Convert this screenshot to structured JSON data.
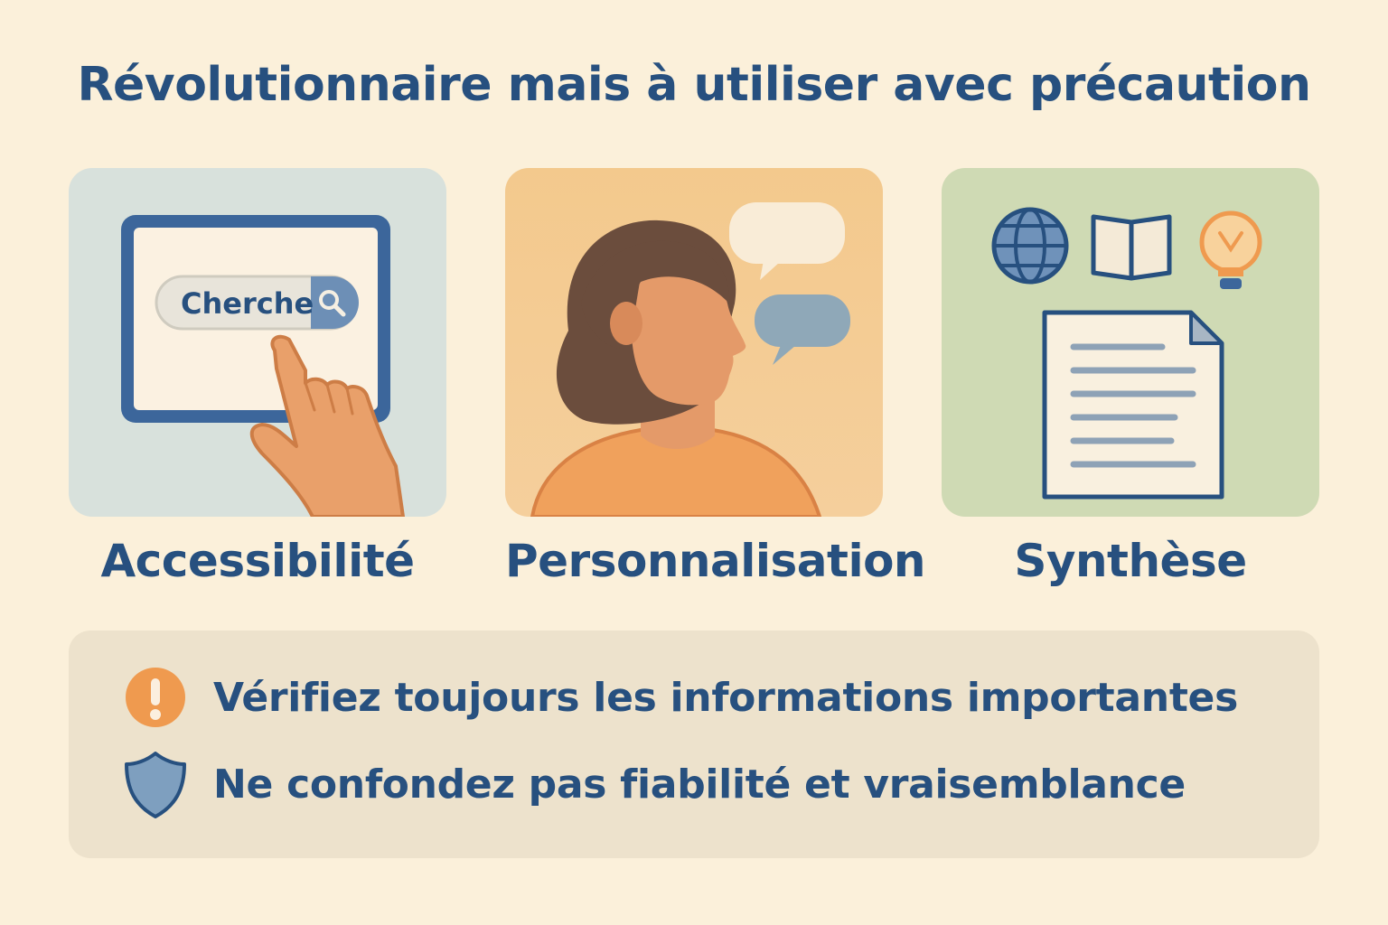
{
  "title": "Révolutionnaire mais à utiliser avec précaution",
  "features": [
    {
      "label": "Accessibilité",
      "illustration": "tablet-search-tap-icon",
      "search_text": "Cherche"
    },
    {
      "label": "Personnalisation",
      "illustration": "person-speech-bubbles-icon"
    },
    {
      "label": "Synthèse",
      "illustration": "globe-book-lightbulb-document-icon"
    }
  ],
  "warnings": [
    {
      "text": "Vérifiez toujours les informations importantes",
      "icon": "exclamation-icon"
    },
    {
      "text": "Ne confondez pas fiabilité et vraisemblance",
      "icon": "shield-icon"
    }
  ],
  "colors": {
    "background": "#fbf0da",
    "text": "#27507f",
    "accent_orange": "#ef9a4f",
    "accent_blue": "#7e9fbf",
    "card_accessibility": "#d8e1dc",
    "card_personalisation": "#f3c98d",
    "card_synthesis": "#cfdab4",
    "notice_panel": "#ede2cc"
  }
}
